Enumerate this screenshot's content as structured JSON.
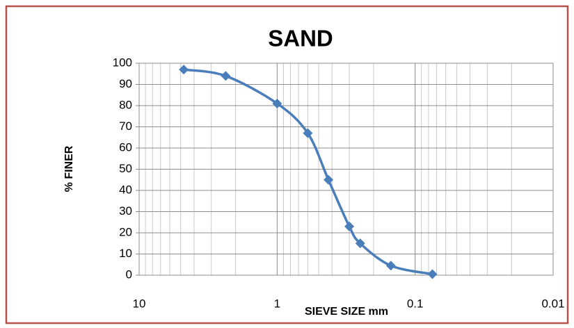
{
  "chart_data": {
    "type": "line",
    "title": "SAND",
    "x_label": "SIEVE SIZE mm",
    "y_label": "% FINER",
    "x": [
      4.75,
      2.36,
      1,
      0.6,
      0.425,
      0.3,
      0.25,
      0.15,
      0.075
    ],
    "series": [
      {
        "name": "SAND",
        "color": "#4a7ebb",
        "values": [
          97,
          94,
          81,
          67,
          45,
          23,
          15,
          4.5,
          0.5
        ]
      }
    ],
    "x_log": true,
    "xlim": [
      10,
      0.01
    ],
    "xticks": [
      10,
      1,
      0.1,
      0.01
    ],
    "ylim": [
      0,
      100
    ],
    "yticks": [
      0,
      10,
      20,
      30,
      40,
      50,
      60,
      70,
      80,
      90,
      100
    ],
    "grid": true,
    "minor_grid": true,
    "legend": false
  }
}
